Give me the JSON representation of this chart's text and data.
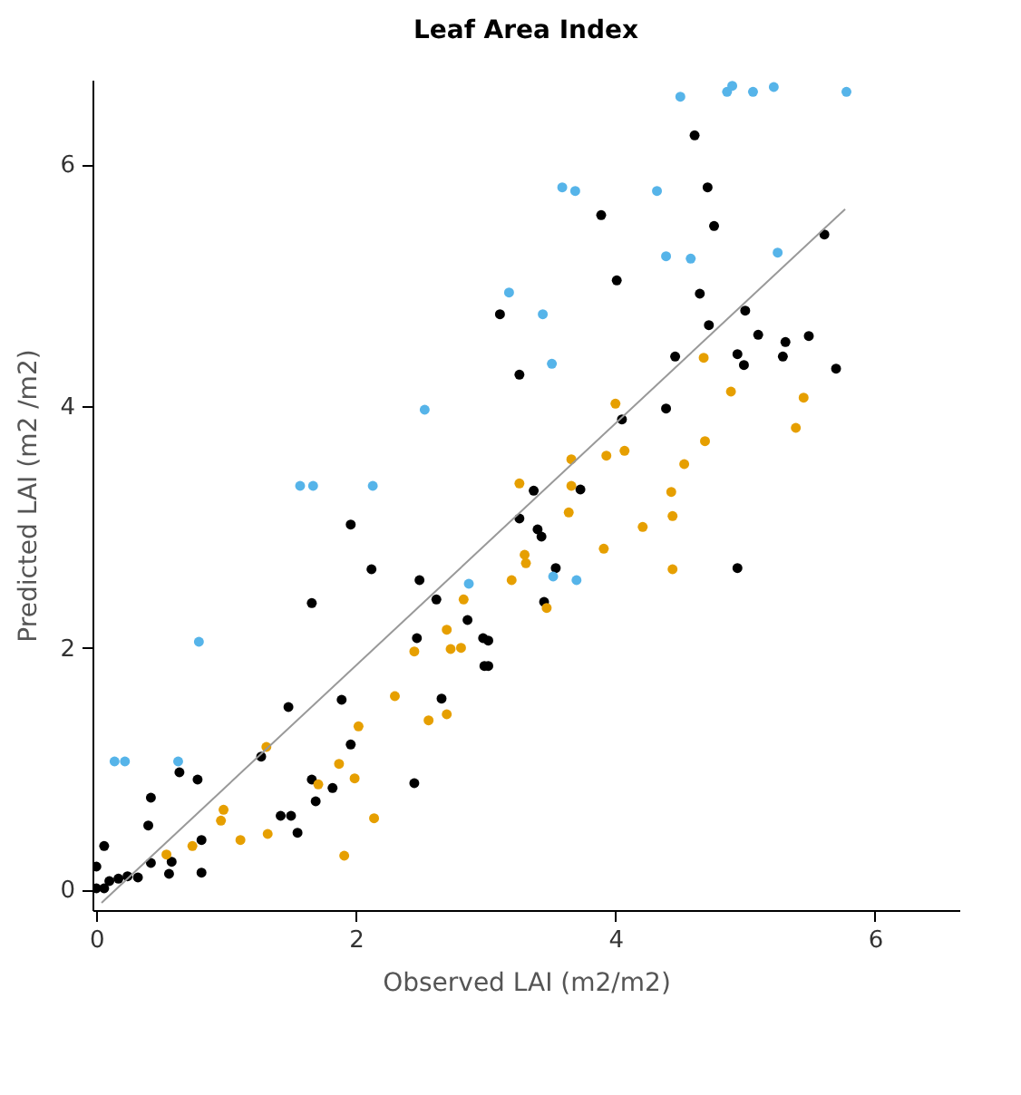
{
  "chart_data": {
    "type": "scatter",
    "title": "Leaf Area Index",
    "xlabel": "Observed LAI (m2/m2)",
    "ylabel": "Predicted LAI (m2 /m2)",
    "xlim": [
      -0.03,
      6.65
    ],
    "ylim": [
      -0.17,
      6.7
    ],
    "xticks": [
      0,
      2,
      4,
      6
    ],
    "yticks": [
      0,
      2,
      4,
      6
    ],
    "grid": false,
    "series": [
      {
        "color": "#000000",
        "marker": "circle",
        "x": [
          4.61,
          4.71,
          4.76,
          3.89,
          4.01,
          3.11,
          3.26,
          4.65,
          5.0,
          4.72,
          5.61,
          5.1,
          5.31,
          5.49,
          5.29,
          4.94,
          4.99,
          5.7,
          4.46,
          4.39,
          4.05,
          3.37,
          3.73,
          3.26,
          3.4,
          3.43,
          3.54,
          4.94,
          3.45,
          3.02,
          3.02,
          1.96,
          2.12,
          1.66,
          2.49,
          2.62,
          2.86,
          2.47,
          2.98,
          2.99,
          2.66,
          2.45,
          1.89,
          1.96,
          1.82,
          1.69,
          1.66,
          1.55,
          1.42,
          1.5,
          1.27,
          1.48,
          0.81,
          0.81,
          0.78,
          0.64,
          0.42,
          0.4,
          0.58,
          0.56,
          0.42,
          0.32,
          0.24,
          0.17,
          0.1,
          0.06,
          0.0,
          0.06,
          0.0
        ],
        "values": [
          6.24,
          5.81,
          5.49,
          5.58,
          5.04,
          4.76,
          4.26,
          4.93,
          4.79,
          4.67,
          5.42,
          4.59,
          4.53,
          4.58,
          4.41,
          4.43,
          4.34,
          4.31,
          4.41,
          3.98,
          3.89,
          3.3,
          3.31,
          3.07,
          2.98,
          2.92,
          2.66,
          2.66,
          2.38,
          2.06,
          1.85,
          3.02,
          2.65,
          2.37,
          2.56,
          2.4,
          2.23,
          2.08,
          2.08,
          1.85,
          1.58,
          0.88,
          1.57,
          1.2,
          0.84,
          0.73,
          0.91,
          0.47,
          0.61,
          0.61,
          1.1,
          1.51,
          0.41,
          0.14,
          0.91,
          0.97,
          0.76,
          0.53,
          0.23,
          0.13,
          0.22,
          0.1,
          0.11,
          0.09,
          0.07,
          0.01,
          0.01,
          0.36,
          0.19
        ]
      },
      {
        "color": "#e69f00",
        "marker": "circle",
        "x": [
          4.68,
          4.89,
          5.45,
          5.39,
          4.0,
          3.66,
          3.93,
          4.07,
          4.69,
          4.53,
          3.26,
          3.66,
          4.43,
          3.64,
          4.44,
          4.21,
          3.91,
          3.3,
          3.31,
          3.2,
          4.44,
          3.47,
          2.45,
          2.7,
          2.73,
          2.81,
          2.83,
          2.3,
          2.56,
          2.7,
          2.02,
          1.87,
          1.99,
          1.71,
          2.14,
          1.91,
          1.32,
          1.31,
          1.11,
          0.98,
          0.96,
          0.74,
          0.54
        ],
        "values": [
          4.4,
          4.12,
          4.07,
          3.82,
          4.02,
          3.56,
          3.59,
          3.63,
          3.71,
          3.52,
          3.36,
          3.34,
          3.29,
          3.12,
          3.09,
          3.0,
          2.82,
          2.77,
          2.7,
          2.56,
          2.65,
          2.33,
          1.97,
          2.15,
          1.99,
          2.0,
          2.4,
          1.6,
          1.4,
          1.45,
          1.35,
          1.04,
          0.92,
          0.87,
          0.59,
          0.28,
          0.46,
          1.18,
          0.41,
          0.66,
          0.57,
          0.36,
          0.29
        ]
      },
      {
        "color": "#56b4e9",
        "marker": "circle",
        "x": [
          0.14,
          0.22,
          0.63,
          0.79,
          1.57,
          1.67,
          2.13,
          2.53,
          3.18,
          4.5,
          4.86,
          4.9,
          5.06,
          5.22,
          5.78,
          3.59,
          3.69,
          4.32,
          4.39,
          4.58,
          5.25,
          3.44,
          3.51,
          3.52,
          3.7,
          2.87
        ],
        "values": [
          1.06,
          1.06,
          1.06,
          2.05,
          3.34,
          3.34,
          3.34,
          3.97,
          4.94,
          6.56,
          6.6,
          6.65,
          6.6,
          6.64,
          6.6,
          5.81,
          5.78,
          5.78,
          5.24,
          5.22,
          5.27,
          4.76,
          4.35,
          2.59,
          2.56,
          2.53
        ]
      },
      {
        "type": "line",
        "color": "#999999",
        "x": [
          0.04,
          5.77
        ],
        "values": [
          -0.11,
          5.63
        ]
      }
    ]
  }
}
